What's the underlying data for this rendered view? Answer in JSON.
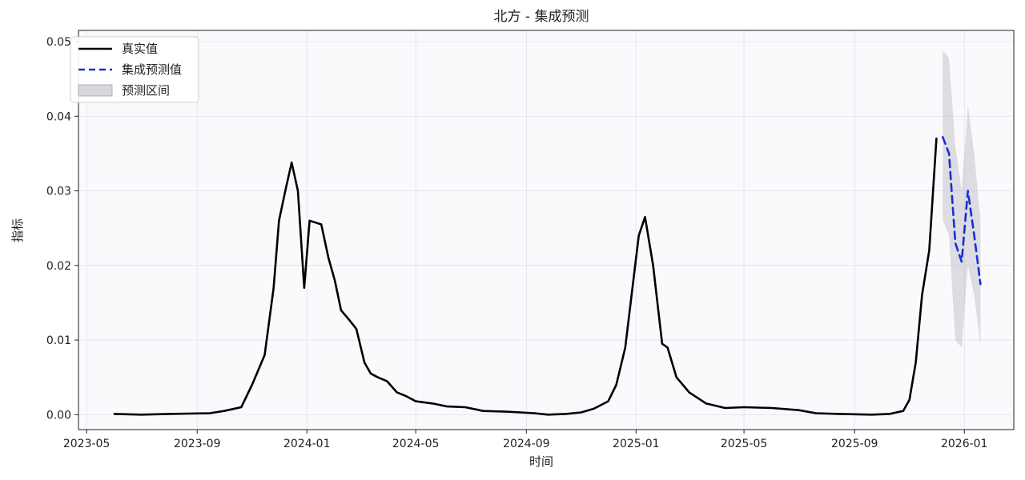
{
  "chart_data": {
    "type": "line",
    "title": "北方 - 集成预测",
    "xlabel": "时间",
    "ylabel": "指标",
    "xlim": [
      "2023-04-22",
      "2026-02-25"
    ],
    "ylim": [
      -0.002,
      0.0515
    ],
    "x_ticks": [
      "2023-05",
      "2023-09",
      "2024-01",
      "2024-05",
      "2024-09",
      "2025-01",
      "2025-05",
      "2025-09",
      "2026-01"
    ],
    "y_ticks": [
      "0.00",
      "0.01",
      "0.02",
      "0.03",
      "0.04",
      "0.05"
    ],
    "grid": true,
    "legend_position": "top-left",
    "series": [
      {
        "name": "真实值",
        "style": "solid",
        "color": "#000000",
        "points": [
          [
            "2023-06-01",
            0.0001
          ],
          [
            "2023-07-01",
            0.0
          ],
          [
            "2023-08-01",
            0.0001
          ],
          [
            "2023-09-15",
            0.0002
          ],
          [
            "2023-10-01",
            0.0005
          ],
          [
            "2023-10-20",
            0.001
          ],
          [
            "2023-11-01",
            0.004
          ],
          [
            "2023-11-15",
            0.008
          ],
          [
            "2023-11-25",
            0.017
          ],
          [
            "2023-12-01",
            0.026
          ],
          [
            "2023-12-08",
            0.03
          ],
          [
            "2023-12-15",
            0.0338
          ],
          [
            "2023-12-22",
            0.03
          ],
          [
            "2023-12-29",
            0.017
          ],
          [
            "2024-01-04",
            0.026
          ],
          [
            "2024-01-17",
            0.0255
          ],
          [
            "2024-01-25",
            0.021
          ],
          [
            "2024-02-01",
            0.018
          ],
          [
            "2024-02-08",
            0.014
          ],
          [
            "2024-02-15",
            0.013
          ],
          [
            "2024-02-25",
            0.0115
          ],
          [
            "2024-03-05",
            0.007
          ],
          [
            "2024-03-12",
            0.0055
          ],
          [
            "2024-03-20",
            0.005
          ],
          [
            "2024-03-30",
            0.0045
          ],
          [
            "2024-04-10",
            0.003
          ],
          [
            "2024-04-20",
            0.0025
          ],
          [
            "2024-05-01",
            0.0018
          ],
          [
            "2024-05-20",
            0.0015
          ],
          [
            "2024-06-05",
            0.0011
          ],
          [
            "2024-06-25",
            0.001
          ],
          [
            "2024-07-15",
            0.0005
          ],
          [
            "2024-08-10",
            0.0004
          ],
          [
            "2024-09-10",
            0.0002
          ],
          [
            "2024-09-25",
            0.0
          ],
          [
            "2024-10-15",
            0.0001
          ],
          [
            "2024-11-01",
            0.0003
          ],
          [
            "2024-11-15",
            0.0008
          ],
          [
            "2024-12-01",
            0.0018
          ],
          [
            "2024-12-10",
            0.004
          ],
          [
            "2024-12-20",
            0.009
          ],
          [
            "2024-12-28",
            0.017
          ],
          [
            "2025-01-04",
            0.024
          ],
          [
            "2025-01-11",
            0.0265
          ],
          [
            "2025-01-20",
            0.02
          ],
          [
            "2025-01-30",
            0.0095
          ],
          [
            "2025-02-05",
            0.009
          ],
          [
            "2025-02-15",
            0.005
          ],
          [
            "2025-03-01",
            0.003
          ],
          [
            "2025-03-20",
            0.0015
          ],
          [
            "2025-04-10",
            0.0009
          ],
          [
            "2025-05-01",
            0.001
          ],
          [
            "2025-06-01",
            0.0009
          ],
          [
            "2025-07-01",
            0.0006
          ],
          [
            "2025-07-20",
            0.0002
          ],
          [
            "2025-08-15",
            0.0001
          ],
          [
            "2025-09-20",
            0.0
          ],
          [
            "2025-10-10",
            0.0001
          ],
          [
            "2025-10-25",
            0.0005
          ],
          [
            "2025-11-01",
            0.002
          ],
          [
            "2025-11-08",
            0.007
          ],
          [
            "2025-11-15",
            0.016
          ],
          [
            "2025-11-23",
            0.022
          ],
          [
            "2025-12-01",
            0.037
          ]
        ]
      },
      {
        "name": "集成预测值",
        "style": "dashed",
        "color": "#1a2ed6",
        "points": [
          [
            "2025-12-08",
            0.0372
          ],
          [
            "2025-12-15",
            0.035
          ],
          [
            "2025-12-22",
            0.023
          ],
          [
            "2025-12-29",
            0.0205
          ],
          [
            "2026-01-05",
            0.03
          ],
          [
            "2026-01-12",
            0.024
          ],
          [
            "2026-01-19",
            0.0175
          ]
        ]
      },
      {
        "name": "预测区间",
        "style": "band",
        "color": "#b8b8c0",
        "points": [
          [
            "2025-12-08",
            0.026,
            0.0488
          ],
          [
            "2025-12-15",
            0.024,
            0.0478
          ],
          [
            "2025-12-22",
            0.01,
            0.036
          ],
          [
            "2025-12-29",
            0.009,
            0.03
          ],
          [
            "2026-01-05",
            0.02,
            0.0415
          ],
          [
            "2026-01-12",
            0.016,
            0.035
          ],
          [
            "2026-01-19",
            0.0093,
            0.026
          ]
        ]
      }
    ]
  }
}
